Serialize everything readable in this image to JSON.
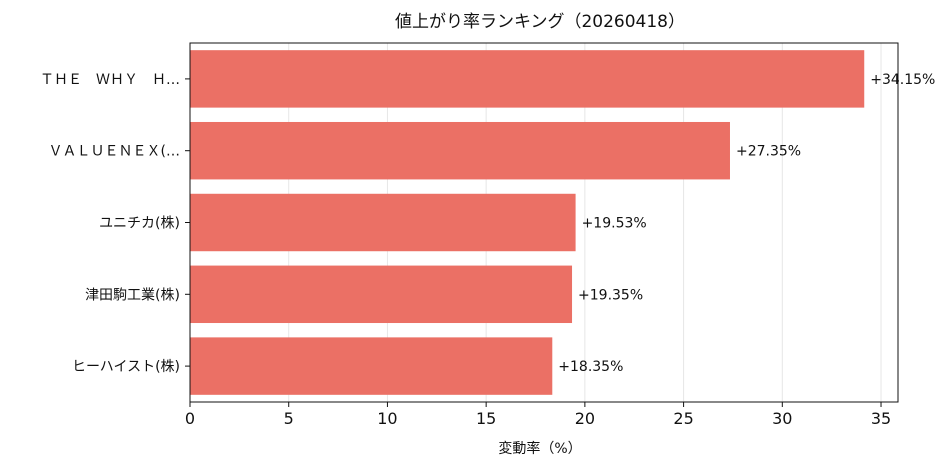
{
  "chart_data": {
    "type": "bar",
    "orientation": "horizontal",
    "title": "値上がり率ランキング（20260418）",
    "xlabel": "変動率（%）",
    "ylabel": "",
    "categories": [
      "ＴＨＥ　ＷＨＹ　Ｈ…",
      "ＶＡＬＵＥＮＥＸ(…",
      "ユニチカ(株)",
      "津田駒工業(株)",
      "ヒーハイスト(株)"
    ],
    "values": [
      34.15,
      27.35,
      19.53,
      19.35,
      18.35
    ],
    "data_labels": [
      "+34.15%",
      "+27.35%",
      "+19.53%",
      "+19.35%",
      "+18.35%"
    ],
    "xlim": [
      0,
      35.86
    ],
    "xticks": [
      0,
      5,
      10,
      15,
      20,
      25,
      30,
      35
    ],
    "xtick_labels": [
      "0",
      "5",
      "10",
      "15",
      "20",
      "25",
      "30",
      "35"
    ],
    "grid": "vertical",
    "bar_color": "#eb7065"
  }
}
